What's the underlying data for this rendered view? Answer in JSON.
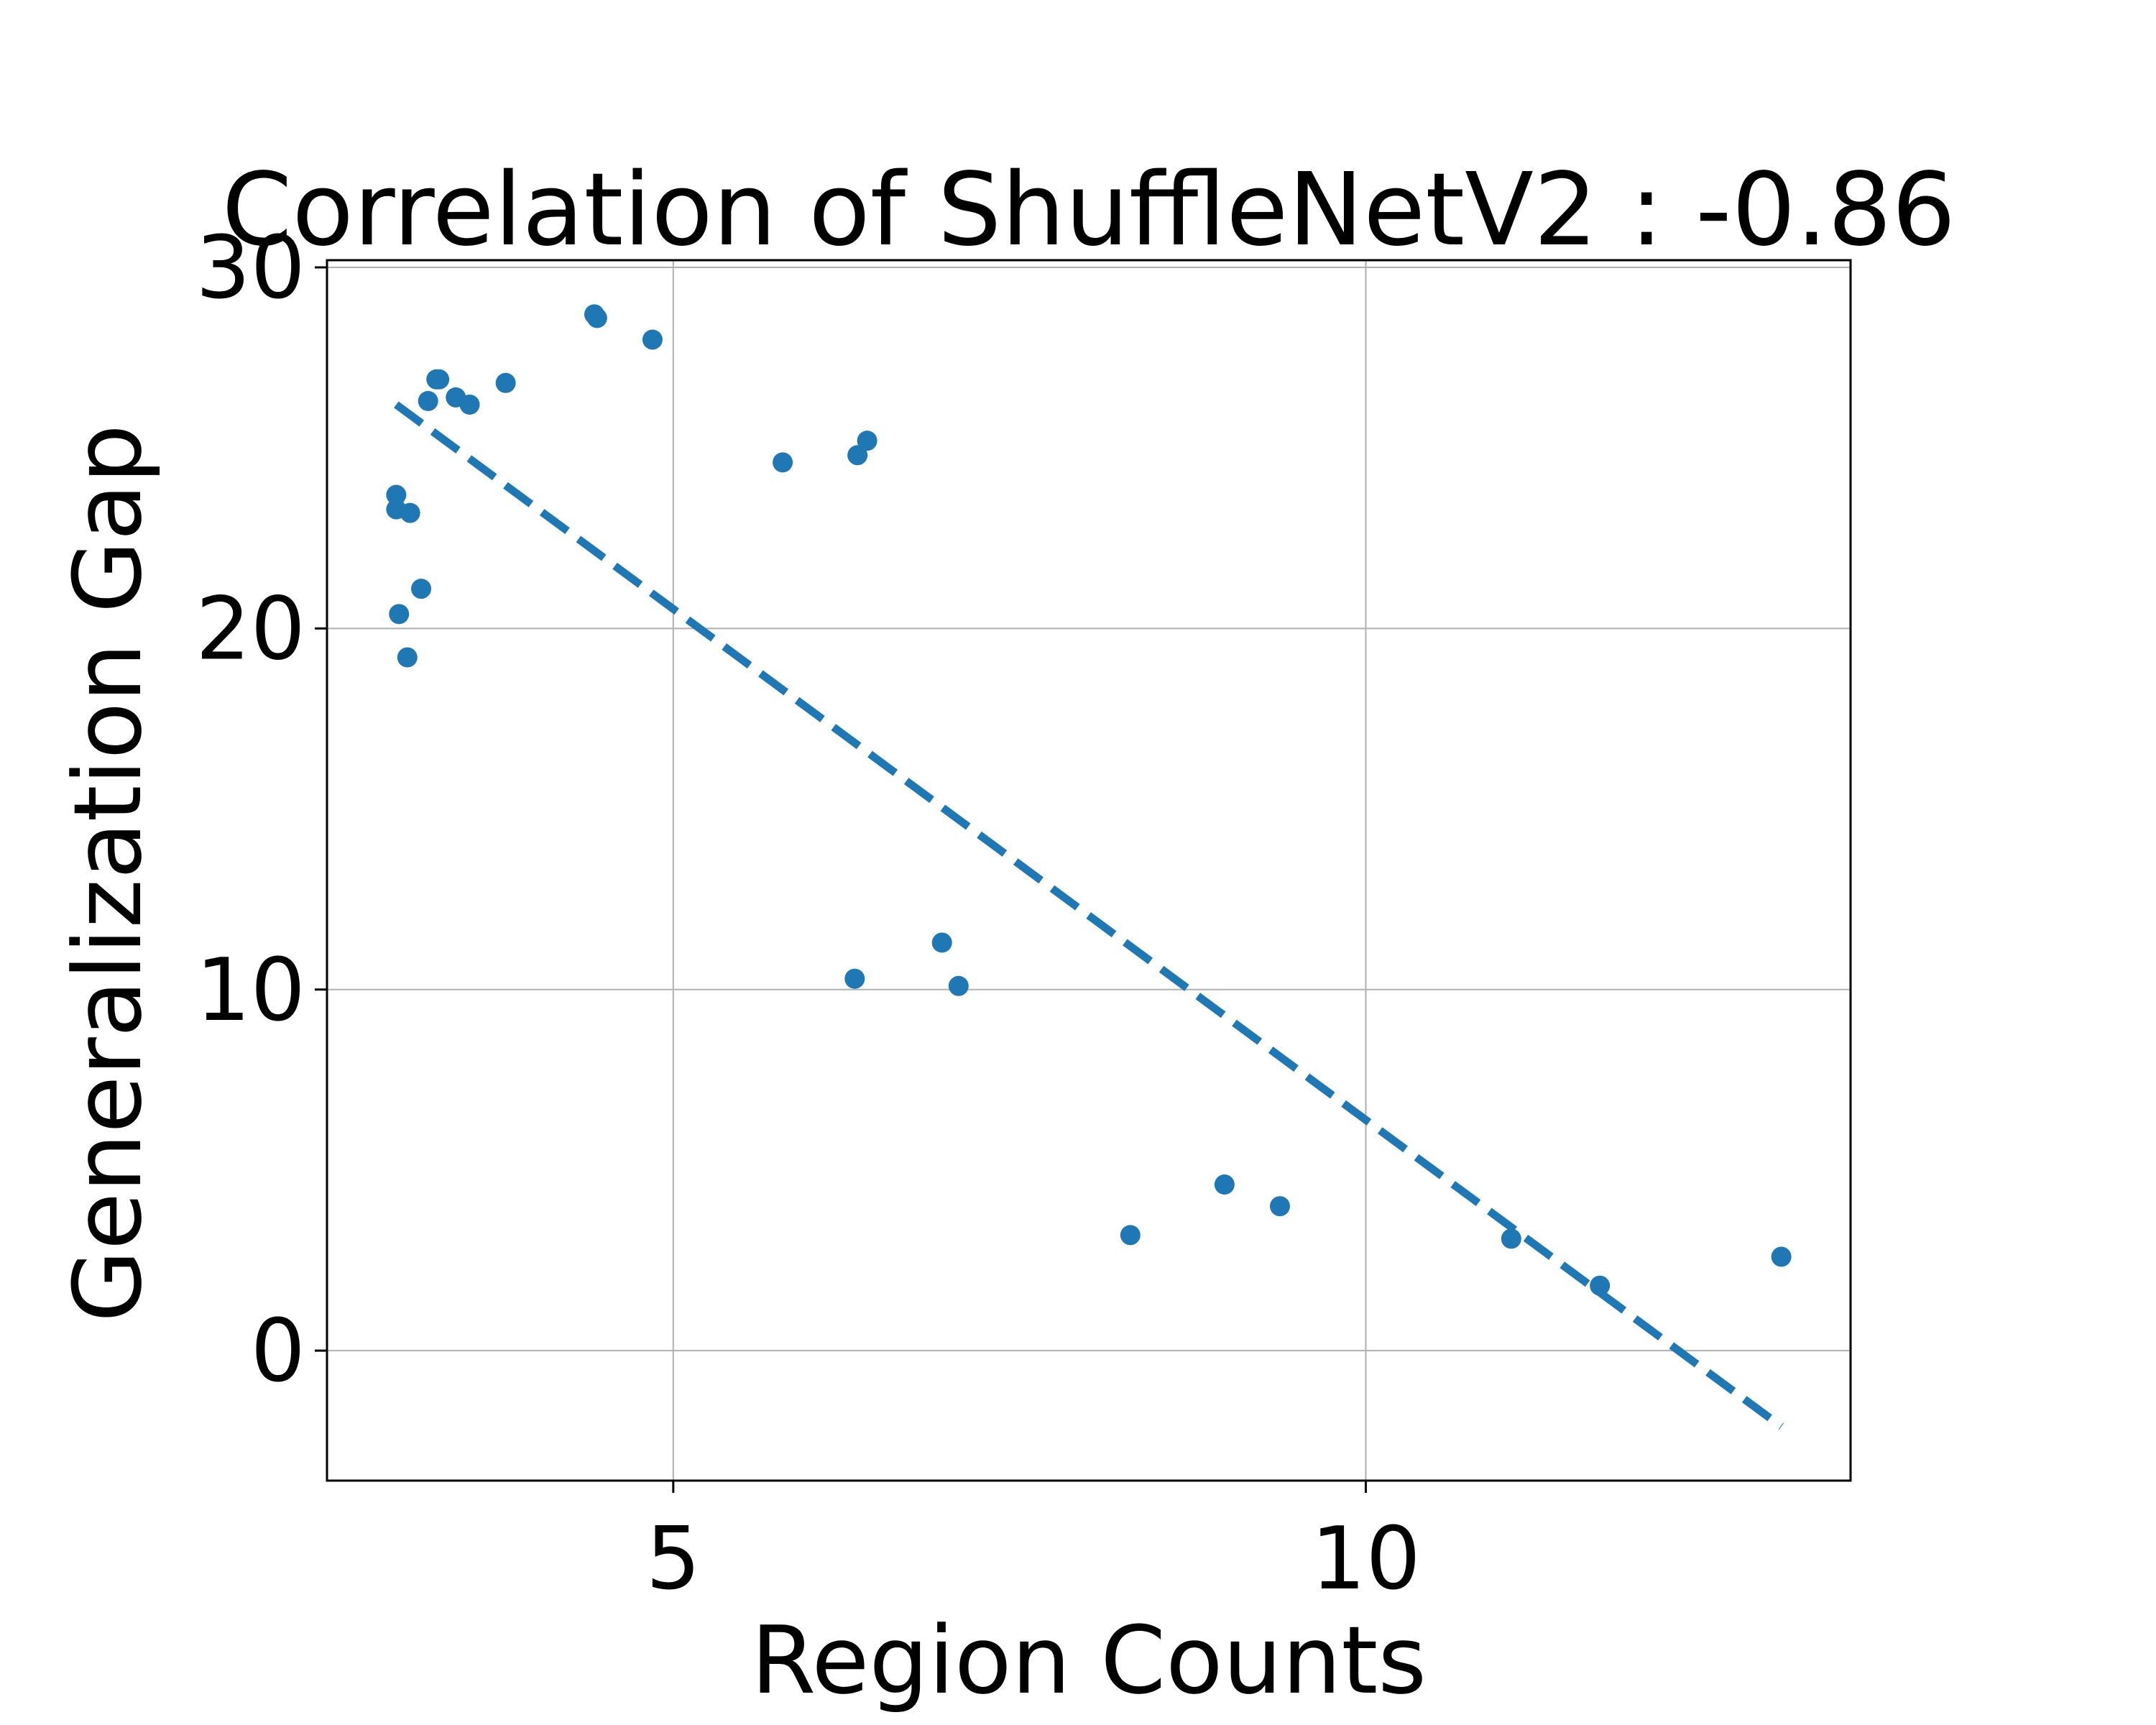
{
  "chart_data": {
    "type": "scatter",
    "title": "Correlation of ShuffleNetV2 : -0.86",
    "xlabel": "Region Counts",
    "ylabel": "Generalization Gap",
    "xlim": [
      2.5,
      13.5
    ],
    "ylim": [
      -3.6,
      30.2
    ],
    "grid": true,
    "x_ticks": [
      5,
      10
    ],
    "y_ticks": [
      0,
      10,
      20,
      30
    ],
    "marker_color": "#1f77b4",
    "line_color": "#1f77b4",
    "points": [
      {
        "x": 3.0,
        "y": 23.7
      },
      {
        "x": 3.0,
        "y": 23.3
      },
      {
        "x": 3.02,
        "y": 20.4
      },
      {
        "x": 3.08,
        "y": 19.2
      },
      {
        "x": 3.1,
        "y": 23.2
      },
      {
        "x": 3.18,
        "y": 21.1
      },
      {
        "x": 3.23,
        "y": 26.3
      },
      {
        "x": 3.29,
        "y": 26.9
      },
      {
        "x": 3.31,
        "y": 26.9
      },
      {
        "x": 3.43,
        "y": 26.4
      },
      {
        "x": 3.53,
        "y": 26.2
      },
      {
        "x": 3.79,
        "y": 26.8
      },
      {
        "x": 4.43,
        "y": 28.7
      },
      {
        "x": 4.45,
        "y": 28.6
      },
      {
        "x": 4.85,
        "y": 28.0
      },
      {
        "x": 5.79,
        "y": 24.6
      },
      {
        "x": 6.31,
        "y": 10.3
      },
      {
        "x": 6.33,
        "y": 24.8
      },
      {
        "x": 6.4,
        "y": 25.2
      },
      {
        "x": 6.94,
        "y": 11.3
      },
      {
        "x": 7.06,
        "y": 10.1
      },
      {
        "x": 8.3,
        "y": 3.2
      },
      {
        "x": 8.98,
        "y": 4.6
      },
      {
        "x": 9.38,
        "y": 4.0
      },
      {
        "x": 11.05,
        "y": 3.1
      },
      {
        "x": 11.69,
        "y": 1.8
      },
      {
        "x": 13.0,
        "y": 2.6
      }
    ],
    "trendline": {
      "style": "dashed",
      "x": [
        3.0,
        13.0
      ],
      "y": [
        26.2,
        -2.1
      ]
    }
  }
}
